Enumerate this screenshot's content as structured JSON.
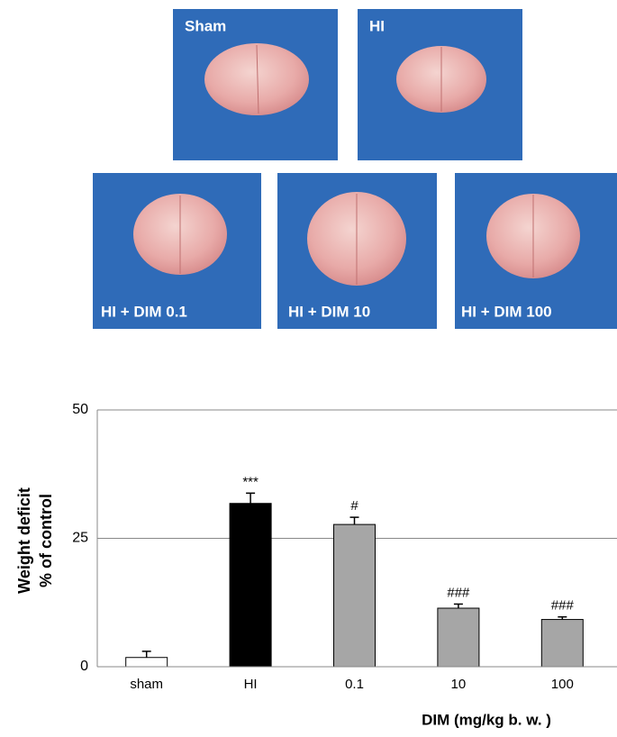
{
  "panels": [
    {
      "label": "Sham"
    },
    {
      "label": "HI"
    },
    {
      "label": "HI + DIM 0.1"
    },
    {
      "label": "HI + DIM 10"
    },
    {
      "label": "HI + DIM 100"
    }
  ],
  "chart_data": {
    "type": "bar",
    "y_label": [
      "Weight deficit",
      "% of control"
    ],
    "x_label": "DIM (mg/kg b. w. )",
    "categories": [
      "sham",
      "HI",
      "0.1",
      "10",
      "100"
    ],
    "values": [
      1.8,
      31.8,
      27.7,
      11.4,
      9.2
    ],
    "errors": [
      1.2,
      2.0,
      1.4,
      0.8,
      0.5
    ],
    "colors": [
      "#ffffff",
      "#000000",
      "#a6a6a6",
      "#a6a6a6",
      "#a6a6a6"
    ],
    "annotations": [
      null,
      "***",
      "#",
      "###",
      "###"
    ],
    "ylim": [
      0,
      50
    ],
    "yticks": [
      0,
      25,
      50
    ],
    "grid": true
  }
}
